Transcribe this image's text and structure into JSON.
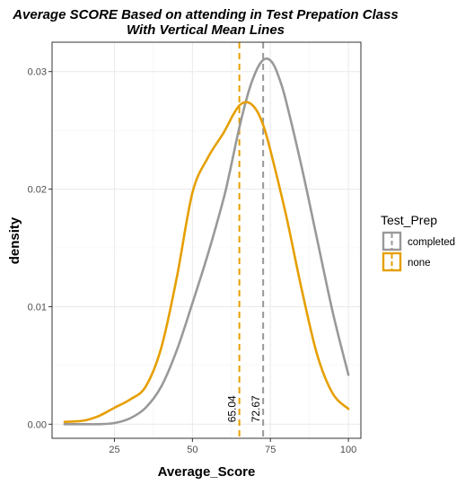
{
  "chart_data": {
    "type": "line",
    "title": "Average SCORE Based on attending in Test Prepation Class",
    "subtitle": "With Vertical Mean Lines",
    "xlabel": "Average_Score",
    "ylabel": "density",
    "xlim": [
      5,
      104
    ],
    "ylim": [
      -0.0012,
      0.0325
    ],
    "x_ticks": [
      25,
      50,
      75,
      100
    ],
    "x_tick_labels": [
      "25",
      "50",
      "75",
      "100"
    ],
    "y_ticks": [
      0.0,
      0.01,
      0.02,
      0.03
    ],
    "y_tick_labels": [
      "0.00",
      "0.01",
      "0.02",
      "0.03"
    ],
    "grid": true,
    "legend": {
      "title": "Test_Prep",
      "position": "right",
      "entries": [
        "completed",
        "none"
      ]
    },
    "series": [
      {
        "name": "completed",
        "color": "#999999",
        "x": [
          9,
          15,
          20,
          25,
          30,
          35,
          40,
          45,
          50,
          55,
          60,
          62,
          65,
          68,
          70,
          72,
          74,
          76,
          78,
          80,
          85,
          90,
          95,
          100
        ],
        "y": [
          0.0,
          0.0,
          0.0,
          0.0001,
          0.0005,
          0.0014,
          0.0032,
          0.0063,
          0.0103,
          0.0145,
          0.0192,
          0.0215,
          0.0252,
          0.0283,
          0.0298,
          0.0308,
          0.0311,
          0.0306,
          0.0293,
          0.0275,
          0.0219,
          0.0157,
          0.0095,
          0.0042
        ]
      },
      {
        "name": "none",
        "color": "#E69F00",
        "x": [
          9,
          15,
          20,
          25,
          30,
          35,
          40,
          45,
          50,
          55,
          60,
          63,
          65,
          67,
          69,
          71,
          73,
          75,
          80,
          85,
          90,
          95,
          100
        ],
        "y": [
          0.0002,
          0.0003,
          0.0007,
          0.0014,
          0.0021,
          0.0032,
          0.0065,
          0.0125,
          0.0197,
          0.0227,
          0.0248,
          0.0263,
          0.0271,
          0.0274,
          0.0272,
          0.0265,
          0.0252,
          0.0233,
          0.0178,
          0.0115,
          0.0059,
          0.0026,
          0.0013
        ]
      }
    ],
    "mean_lines": [
      {
        "series": "none",
        "x": 65.04,
        "label": "65.04",
        "color": "#E69F00"
      },
      {
        "series": "completed",
        "x": 72.67,
        "label": "72.67",
        "color": "#999999"
      }
    ]
  }
}
